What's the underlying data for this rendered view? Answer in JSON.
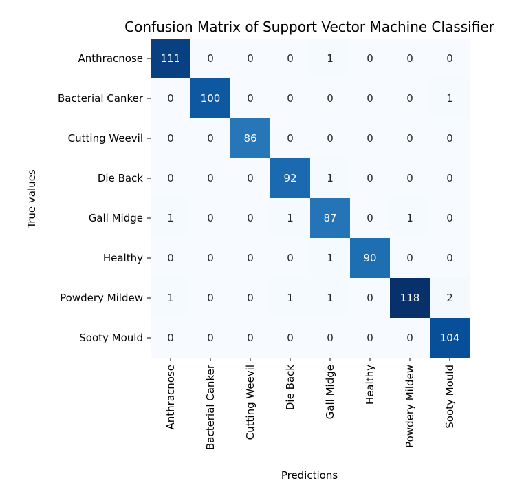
{
  "chart_data": {
    "type": "heatmap",
    "title": "Confusion Matrix of Support Vector Machine Classifier",
    "xlabel": "Predictions",
    "ylabel": "True values",
    "x_categories": [
      "Anthracnose",
      "Bacterial Canker",
      "Cutting Weevil",
      "Die Back",
      "Gall Midge",
      "Healthy",
      "Powdery Mildew",
      "Sooty Mould"
    ],
    "y_categories": [
      "Anthracnose",
      "Bacterial Canker",
      "Cutting Weevil",
      "Die Back",
      "Gall Midge",
      "Healthy",
      "Powdery Mildew",
      "Sooty Mould"
    ],
    "values": [
      [
        111,
        0,
        0,
        0,
        1,
        0,
        0,
        0
      ],
      [
        0,
        100,
        0,
        0,
        0,
        0,
        0,
        1
      ],
      [
        0,
        0,
        86,
        0,
        0,
        0,
        0,
        0
      ],
      [
        0,
        0,
        0,
        92,
        1,
        0,
        0,
        0
      ],
      [
        1,
        0,
        0,
        1,
        87,
        0,
        1,
        0
      ],
      [
        0,
        0,
        0,
        0,
        1,
        90,
        0,
        0
      ],
      [
        1,
        0,
        0,
        1,
        1,
        0,
        118,
        2
      ],
      [
        0,
        0,
        0,
        0,
        0,
        0,
        0,
        104
      ]
    ],
    "colormap": "Blues",
    "colorbar": false
  }
}
